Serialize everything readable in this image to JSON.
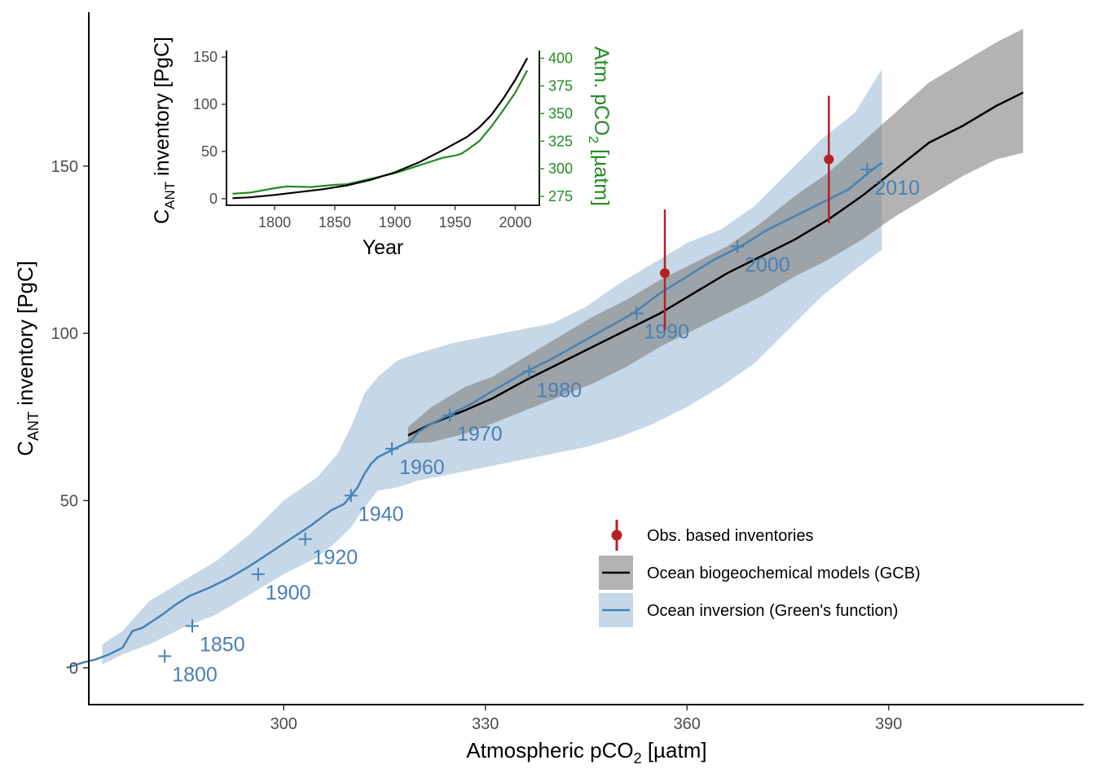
{
  "colors": {
    "inversion": "#4682b4",
    "inversion_band": "#c6d7e7",
    "gcb_line": "#000000",
    "gcb_band": "#808080",
    "obs": "#b22222",
    "atm": "#228b22"
  },
  "chart_data": [
    {
      "type": "line",
      "xlabel_pre": "Atmospheric pCO",
      "xlabel_sub": "2",
      "xlabel_post": " [µatm]",
      "ylabel_pre": "C",
      "ylabel_sub": "ANT",
      "ylabel_post": " inventory [PgC]",
      "xlim": [
        271,
        419
      ],
      "ylim": [
        -11,
        196
      ],
      "xticks": [
        300,
        330,
        360,
        390
      ],
      "yticks": [
        0,
        50,
        100,
        150
      ],
      "grid": false,
      "legend_position": "bottom-right",
      "legend": [
        {
          "key": "obs",
          "label": "Obs. based inventories"
        },
        {
          "key": "gcb",
          "label": "Ocean biogeochemical models (GCB)"
        },
        {
          "key": "inv",
          "label": "Ocean inversion (Green's function)"
        }
      ],
      "series": [
        {
          "key": "gcb",
          "x": [
            318.5,
            322,
            327,
            331,
            336,
            341,
            346,
            351,
            356,
            361,
            366,
            371,
            376,
            381,
            386,
            391,
            396,
            401,
            406,
            410
          ],
          "y": [
            69.5,
            73,
            77,
            80.5,
            86,
            91,
            96,
            101,
            106,
            112,
            118,
            123,
            128,
            134,
            141,
            149,
            157,
            162,
            168,
            172
          ],
          "lower": [
            67,
            67.5,
            70,
            73,
            77,
            81,
            85,
            90,
            96,
            101,
            106,
            111,
            117,
            122,
            128,
            135,
            141,
            147,
            152,
            154
          ],
          "upper": [
            72,
            78,
            84,
            87,
            93,
            99,
            105,
            110,
            116,
            121,
            126,
            133,
            141,
            148,
            157,
            166,
            175,
            181,
            187,
            191
          ]
        },
        {
          "key": "inv",
          "x": [
            267.7,
            270,
            272,
            274,
            276,
            277.5,
            279,
            282,
            284,
            286,
            289,
            292,
            295,
            298,
            301,
            304,
            307,
            309,
            310,
            311,
            312,
            313,
            314,
            315,
            316,
            317,
            318,
            319,
            320,
            322,
            325,
            328,
            330,
            333,
            336,
            340,
            344,
            348,
            352,
            356,
            360,
            364,
            368,
            372,
            376,
            380,
            384,
            387,
            389
          ],
          "y": [
            0,
            1.5,
            2.5,
            4,
            6,
            11,
            12,
            16,
            19,
            21.5,
            24,
            27,
            30.5,
            34.5,
            38.5,
            42.5,
            47,
            49,
            51.5,
            54,
            58,
            61,
            63,
            64,
            65,
            66,
            67,
            68,
            70.5,
            73,
            76,
            79,
            81.5,
            85,
            88.5,
            92.5,
            97,
            101.5,
            106,
            112,
            117,
            122,
            126,
            131,
            135,
            139,
            143,
            148,
            151
          ]
        }
      ],
      "band_inv": {
        "x": [
          273,
          276,
          280,
          285,
          290,
          295,
          300,
          305,
          308,
          310,
          312,
          314,
          317,
          320,
          325,
          330,
          335,
          340,
          345,
          350,
          355,
          360,
          365,
          370,
          375,
          380,
          385,
          389
        ],
        "lower": [
          1,
          4,
          7,
          12,
          16,
          22,
          28,
          33,
          38,
          42,
          48,
          53,
          54,
          56,
          58,
          60,
          62,
          64,
          66,
          69,
          73,
          78,
          84,
          91,
          101,
          111,
          119,
          125
        ],
        "upper": [
          7,
          11,
          20,
          26,
          32,
          40,
          50,
          57,
          64,
          72,
          82,
          87,
          92,
          94,
          97,
          99,
          101,
          103,
          108,
          115,
          121,
          127,
          131,
          138,
          148,
          158,
          166,
          179
        ]
      },
      "year_markers": [
        {
          "year": "1800",
          "x": 282.3,
          "y": 3.5
        },
        {
          "year": "1850",
          "x": 286.4,
          "y": 12.5
        },
        {
          "year": "1900",
          "x": 296.2,
          "y": 28
        },
        {
          "year": "1920",
          "x": 303.2,
          "y": 38.5
        },
        {
          "year": "1940",
          "x": 310.0,
          "y": 51.5
        },
        {
          "year": "1960",
          "x": 316.1,
          "y": 65.5
        },
        {
          "year": "1970",
          "x": 324.7,
          "y": 75.5
        },
        {
          "year": "1980",
          "x": 336.5,
          "y": 88.5
        },
        {
          "year": "1990",
          "x": 352.5,
          "y": 106
        },
        {
          "year": "2000",
          "x": 367.5,
          "y": 126
        },
        {
          "year": "2010",
          "x": 386.8,
          "y": 149
        }
      ],
      "obs_points": [
        {
          "x": 356.7,
          "y": 118,
          "lo": 101,
          "hi": 137
        },
        {
          "x": 381.1,
          "y": 152,
          "lo": 133,
          "hi": 171
        }
      ]
    },
    {
      "type": "line",
      "xlabel": "Year",
      "ylabel_pre": "C",
      "ylabel_sub": "ANT",
      "ylabel_post": " inventory [PgC]",
      "y2label_pre": "Atm. pCO",
      "y2label_sub": "2",
      "y2label_post": " [µatm]",
      "xlim": [
        1760,
        2020
      ],
      "ylim": [
        -7,
        157
      ],
      "y2lim": [
        267,
        407
      ],
      "xticks": [
        1800,
        1850,
        1900,
        1950,
        2000
      ],
      "yticks": [
        0,
        50,
        100,
        150
      ],
      "y2ticks": [
        275,
        300,
        325,
        350,
        375,
        400
      ],
      "series": [
        {
          "name": "",
          "axis": "left",
          "x": [
            1765,
            1780,
            1800,
            1820,
            1840,
            1860,
            1880,
            1900,
            1920,
            1940,
            1960,
            1970,
            1980,
            1990,
            2000,
            2010
          ],
          "y": [
            0.5,
            1.5,
            4,
            7,
            10,
            14,
            20,
            28,
            38.5,
            51.5,
            65.5,
            75.5,
            88.5,
            106,
            126,
            149
          ]
        },
        {
          "name": "",
          "axis": "right",
          "x": [
            1765,
            1780,
            1800,
            1810,
            1830,
            1850,
            1860,
            1880,
            1900,
            1920,
            1940,
            1950,
            1955,
            1960,
            1970,
            1980,
            1990,
            2000,
            2010
          ],
          "y": [
            277.5,
            278.5,
            282.5,
            284,
            283.5,
            285.5,
            286,
            291,
            296,
            303,
            310,
            312,
            313.5,
            317,
            325,
            338,
            353,
            369,
            389
          ]
        }
      ]
    }
  ]
}
